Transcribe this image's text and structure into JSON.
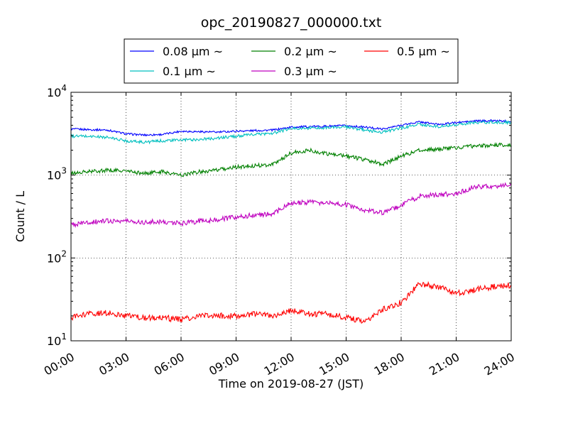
{
  "chart_data": {
    "type": "line",
    "title": "opc_20190827_000000.txt",
    "xlabel": "Time on 2019-08-27 (JST)",
    "ylabel": "Count / L",
    "yscale": "log",
    "xlim": [
      "00:00",
      "24:00"
    ],
    "ylim": [
      10,
      10000
    ],
    "grid": true,
    "legend_position": "top",
    "x_tick_labels": [
      "00:00",
      "03:00",
      "06:00",
      "09:00",
      "12:00",
      "15:00",
      "18:00",
      "21:00",
      "24:00"
    ],
    "y_tick_labels": [
      {
        "base": "10",
        "exp": "1"
      },
      {
        "base": "10",
        "exp": "2"
      },
      {
        "base": "10",
        "exp": "3"
      },
      {
        "base": "10",
        "exp": "4"
      }
    ],
    "x": [
      "00:00",
      "01:00",
      "02:00",
      "03:00",
      "04:00",
      "05:00",
      "06:00",
      "07:00",
      "08:00",
      "09:00",
      "10:00",
      "11:00",
      "12:00",
      "13:00",
      "14:00",
      "15:00",
      "16:00",
      "17:00",
      "18:00",
      "19:00",
      "20:00",
      "21:00",
      "22:00",
      "23:00",
      "24:00"
    ],
    "series": [
      {
        "name": "0.08 μm ~",
        "color": "#0000ff",
        "values": [
          3600,
          3550,
          3500,
          3150,
          3050,
          3100,
          3400,
          3350,
          3300,
          3400,
          3450,
          3500,
          3800,
          3850,
          3900,
          3950,
          3800,
          3600,
          4000,
          4400,
          4100,
          4300,
          4500,
          4550,
          4450
        ]
      },
      {
        "name": "0.1 μm ~",
        "color": "#00bfbf",
        "values": [
          2950,
          2950,
          2850,
          2600,
          2500,
          2600,
          2650,
          2700,
          2800,
          2950,
          3100,
          3200,
          3650,
          3700,
          3750,
          3800,
          3500,
          3300,
          3700,
          4100,
          3850,
          4100,
          4300,
          4350,
          4300
        ]
      },
      {
        "name": "0.2 μm ~",
        "color": "#008000",
        "values": [
          1050,
          1100,
          1150,
          1120,
          1050,
          1100,
          1000,
          1100,
          1150,
          1250,
          1300,
          1350,
          1850,
          2000,
          1800,
          1700,
          1550,
          1350,
          1700,
          2000,
          2050,
          2150,
          2250,
          2300,
          2300
        ]
      },
      {
        "name": "0.3 μm ~",
        "color": "#bf00bf",
        "values": [
          250,
          270,
          280,
          280,
          270,
          275,
          260,
          280,
          290,
          310,
          330,
          340,
          460,
          470,
          460,
          440,
          380,
          350,
          430,
          560,
          580,
          600,
          720,
          740,
          750
        ]
      },
      {
        "name": "0.5 μm ~",
        "color": "#ff0000",
        "values": [
          19,
          21,
          22,
          20,
          19,
          19,
          18,
          20,
          20,
          20,
          21,
          20,
          23,
          21,
          21,
          19,
          17,
          24,
          29,
          49,
          45,
          37,
          41,
          45,
          47
        ]
      }
    ]
  }
}
